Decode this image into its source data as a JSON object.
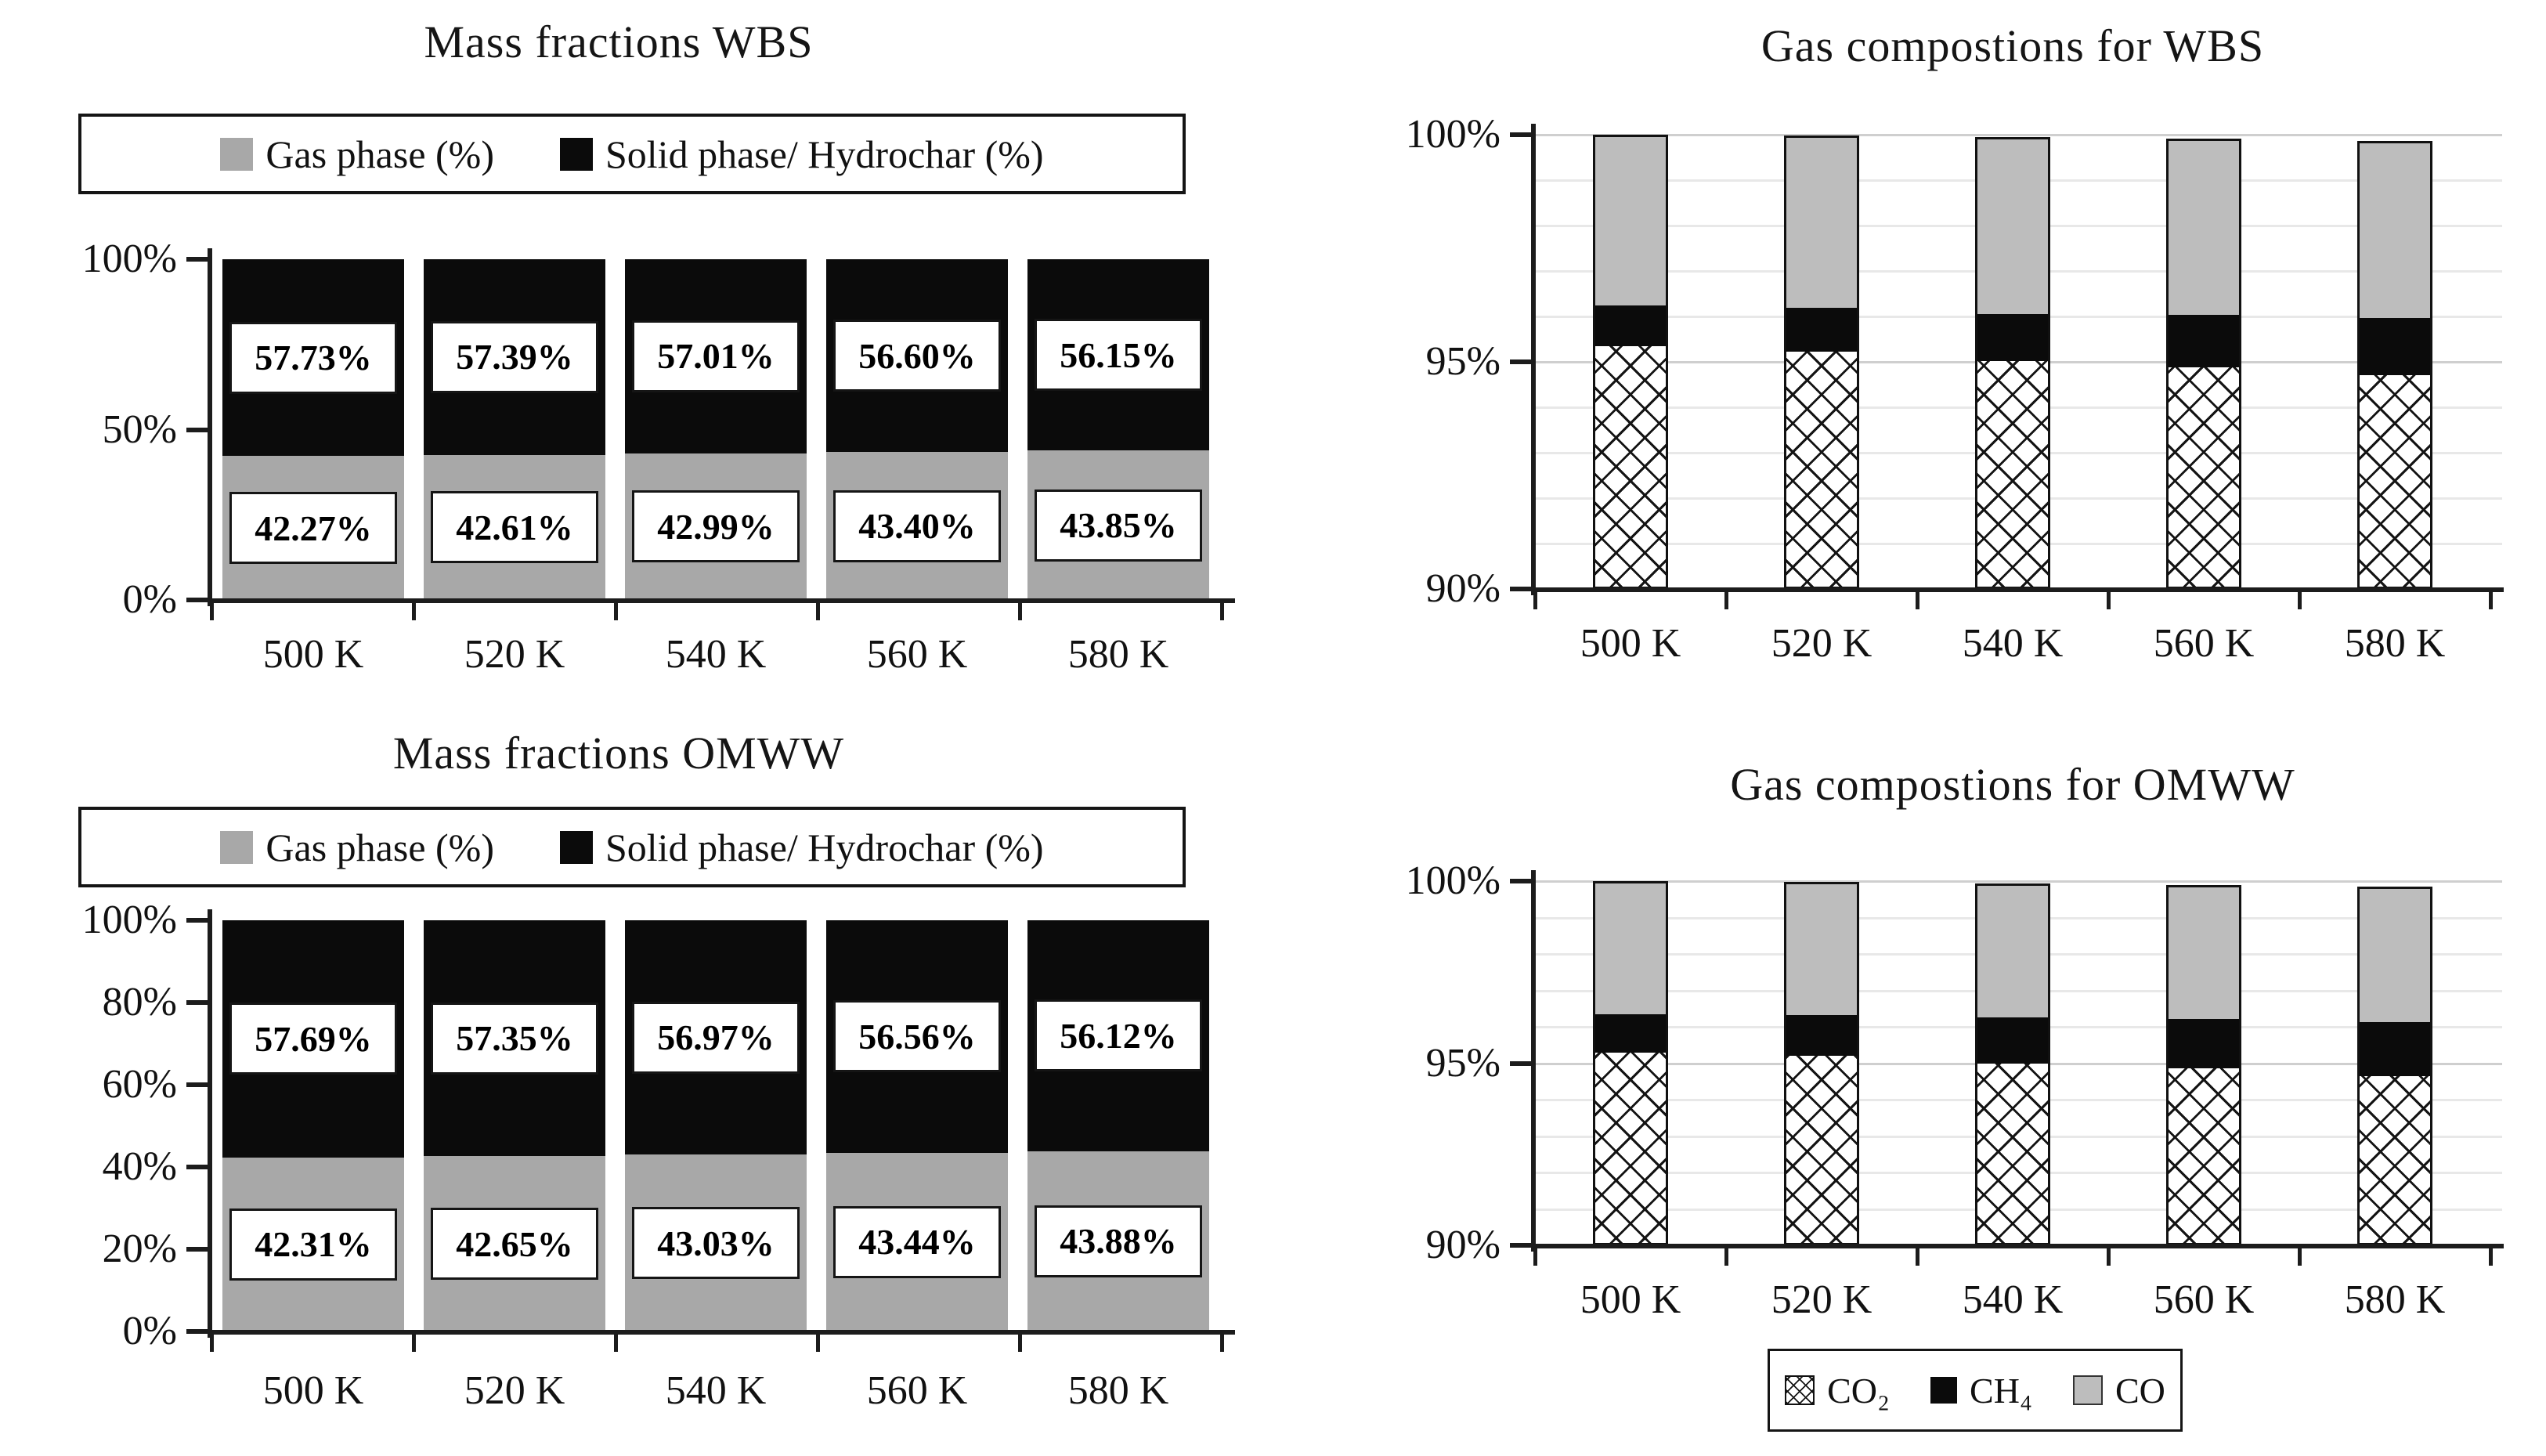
{
  "colors": {
    "gas_gray": "#a8a8a8",
    "solid_black": "#0b0b0b",
    "co_gray": "#bdbdbd",
    "crosshatch_line": "#141414",
    "axis": "#1c1c1c",
    "grid_minor": "#e8e8e8",
    "grid_major": "#cfcfcf"
  },
  "chart_data": [
    {
      "id": "mass_fractions_wbs",
      "type": "bar",
      "stacked": true,
      "title": "Mass fractions WBS",
      "categories": [
        "500 K",
        "520 K",
        "540 K",
        "560 K",
        "580 K"
      ],
      "series": [
        {
          "name": "Gas phase (%)",
          "swatch": "gray",
          "values": [
            42.27,
            42.61,
            42.99,
            43.4,
            43.85
          ],
          "data_labels": [
            "42.27%",
            "42.61%",
            "42.99%",
            "43.40%",
            "43.85%"
          ]
        },
        {
          "name": "Solid phase/ Hydrochar (%)",
          "swatch": "black",
          "values": [
            57.73,
            57.39,
            57.01,
            56.6,
            56.15
          ],
          "data_labels": [
            "57.73%",
            "57.39%",
            "57.01%",
            "56.60%",
            "56.15%"
          ]
        }
      ],
      "ylim": [
        0,
        100
      ],
      "yticks": [
        {
          "v": 0,
          "label": "0%"
        },
        {
          "v": 50,
          "label": "50%"
        },
        {
          "v": 100,
          "label": "100%"
        }
      ],
      "grid": false,
      "legend_position": "top",
      "data_labels_shown": true
    },
    {
      "id": "gas_compositions_wbs",
      "type": "bar",
      "stacked": true,
      "title": "Gas compostions for WBS",
      "categories": [
        "500 K",
        "520 K",
        "540 K",
        "560 K",
        "580 K"
      ],
      "series": [
        {
          "name": "CO₂",
          "swatch": "crosshatch",
          "values": [
            95.35,
            95.22,
            95.02,
            94.88,
            94.7
          ]
        },
        {
          "name": "CH₄",
          "swatch": "black",
          "values": [
            0.89,
            0.97,
            1.04,
            1.15,
            1.26
          ]
        },
        {
          "name": "CO",
          "swatch": "lightgray",
          "values": [
            3.76,
            3.79,
            3.88,
            3.88,
            3.9
          ]
        }
      ],
      "ylim": [
        90,
        100
      ],
      "yticks": [
        {
          "v": 90,
          "label": "90%"
        },
        {
          "v": 95,
          "label": "95%"
        },
        {
          "v": 100,
          "label": "100%"
        }
      ],
      "grid": true,
      "minor_grid_step": 1,
      "legend_position": "none",
      "data_labels_shown": false
    },
    {
      "id": "mass_fractions_omww",
      "type": "bar",
      "stacked": true,
      "title": "Mass fractions OMWW",
      "categories": [
        "500 K",
        "520 K",
        "540 K",
        "560 K",
        "580 K"
      ],
      "series": [
        {
          "name": "Gas phase (%)",
          "swatch": "gray",
          "values": [
            42.31,
            42.65,
            43.03,
            43.44,
            43.88
          ],
          "data_labels": [
            "42.31%",
            "42.65%",
            "43.03%",
            "43.44%",
            "43.88%"
          ]
        },
        {
          "name": "Solid phase/ Hydrochar (%)",
          "swatch": "black",
          "values": [
            57.69,
            57.35,
            56.97,
            56.56,
            56.12
          ],
          "data_labels": [
            "57.69%",
            "57.35%",
            "56.97%",
            "56.56%",
            "56.12%"
          ]
        }
      ],
      "ylim": [
        0,
        100
      ],
      "yticks": [
        {
          "v": 0,
          "label": "0%"
        },
        {
          "v": 20,
          "label": "20%"
        },
        {
          "v": 40,
          "label": "40%"
        },
        {
          "v": 60,
          "label": "60%"
        },
        {
          "v": 80,
          "label": "80%"
        },
        {
          "v": 100,
          "label": "100%"
        }
      ],
      "grid": false,
      "legend_position": "top",
      "data_labels_shown": true
    },
    {
      "id": "gas_compositions_omww",
      "type": "bar",
      "stacked": true,
      "title": "Gas compostions for OMWW",
      "categories": [
        "500 K",
        "520 K",
        "540 K",
        "560 K",
        "580 K"
      ],
      "series": [
        {
          "name": "CO₂",
          "swatch": "crosshatch",
          "values": [
            95.3,
            95.2,
            95.0,
            94.85,
            94.65
          ]
        },
        {
          "name": "CH₄",
          "swatch": "black",
          "values": [
            1.05,
            1.12,
            1.25,
            1.37,
            1.47
          ]
        },
        {
          "name": "CO",
          "swatch": "lightgray",
          "values": [
            3.65,
            3.65,
            3.69,
            3.68,
            3.73
          ]
        }
      ],
      "ylim": [
        90,
        100
      ],
      "yticks": [
        {
          "v": 90,
          "label": "90%"
        },
        {
          "v": 95,
          "label": "95%"
        },
        {
          "v": 100,
          "label": "100%"
        }
      ],
      "grid": true,
      "minor_grid_step": 1,
      "legend_position": "bottom",
      "data_labels_shown": false
    }
  ]
}
